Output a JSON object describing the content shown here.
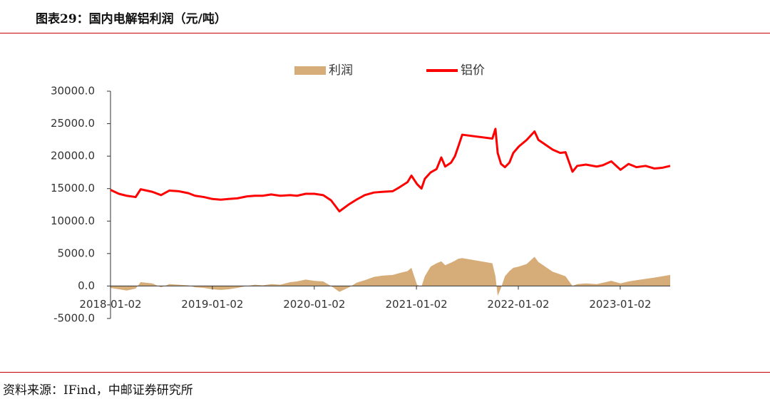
{
  "header": {
    "title": "图表29：国内电解铝利润（元/吨）"
  },
  "footer": {
    "source": "资料来源：IFind，中邮证券研究所"
  },
  "chart_data": {
    "type": "line",
    "x": [
      "2018-01-02",
      "2018-02-01",
      "2018-03-01",
      "2018-04-02",
      "2018-04-20",
      "2018-06-01",
      "2018-07-02",
      "2018-08-01",
      "2018-09-03",
      "2018-10-08",
      "2018-11-01",
      "2018-12-03",
      "2019-01-02",
      "2019-02-01",
      "2019-03-01",
      "2019-04-01",
      "2019-05-06",
      "2019-06-03",
      "2019-07-01",
      "2019-08-01",
      "2019-09-02",
      "2019-10-08",
      "2019-11-01",
      "2019-12-02",
      "2020-01-02",
      "2020-02-03",
      "2020-03-02",
      "2020-04-01",
      "2020-05-06",
      "2020-06-01",
      "2020-07-01",
      "2020-08-03",
      "2020-09-01",
      "2020-10-09",
      "2020-11-02",
      "2020-12-01",
      "2020-12-15",
      "2021-01-04",
      "2021-01-20",
      "2021-02-01",
      "2021-02-22",
      "2021-03-15",
      "2021-04-01",
      "2021-04-15",
      "2021-05-06",
      "2021-05-20",
      "2021-06-01",
      "2021-06-15",
      "2021-10-01",
      "2021-10-12",
      "2021-10-20",
      "2021-11-01",
      "2021-11-15",
      "2021-12-01",
      "2021-12-15",
      "2022-01-04",
      "2022-02-01",
      "2022-03-01",
      "2022-03-15",
      "2022-04-01",
      "2022-05-05",
      "2022-06-01",
      "2022-06-20",
      "2022-07-15",
      "2022-08-01",
      "2022-09-01",
      "2022-10-10",
      "2022-11-01",
      "2022-12-01",
      "2023-01-03",
      "2023-02-01",
      "2023-03-01",
      "2023-04-03",
      "2023-05-04",
      "2023-06-01",
      "2023-06-30"
    ],
    "series": [
      {
        "name": "利润",
        "type": "area",
        "color": "#d6ad79",
        "values": [
          -300,
          -500,
          -700,
          -400,
          600,
          400,
          -200,
          300,
          200,
          100,
          -200,
          -300,
          -500,
          -600,
          -500,
          -300,
          0,
          200,
          100,
          300,
          200,
          600,
          700,
          1000,
          800,
          700,
          0,
          -900,
          -200,
          500,
          900,
          1400,
          1600,
          1700,
          2000,
          2300,
          2800,
          200,
          -100,
          1500,
          3000,
          3500,
          3800,
          3200,
          3600,
          3900,
          4200,
          4300,
          3500,
          1500,
          -1500,
          -300,
          1500,
          2300,
          2800,
          3000,
          3400,
          4500,
          3700,
          3200,
          2200,
          1800,
          1500,
          0,
          300,
          400,
          300,
          500,
          800,
          400,
          700,
          900,
          1100,
          1300,
          1500,
          1700
        ]
      },
      {
        "name": "铝价",
        "type": "line",
        "color": "#ff0000",
        "values": [
          14800,
          14200,
          13900,
          13700,
          14900,
          14500,
          14000,
          14700,
          14600,
          14300,
          13900,
          13700,
          13400,
          13300,
          13400,
          13500,
          13800,
          13900,
          13900,
          14100,
          13900,
          14000,
          13900,
          14200,
          14200,
          14000,
          13200,
          11500,
          12600,
          13300,
          14000,
          14400,
          14500,
          14600,
          15200,
          16000,
          17000,
          15700,
          15000,
          16500,
          17500,
          18000,
          19800,
          18400,
          19000,
          20000,
          21500,
          23300,
          22700,
          24200,
          20500,
          18800,
          18300,
          19000,
          20500,
          21500,
          22500,
          23800,
          22500,
          22000,
          21000,
          20500,
          20600,
          17600,
          18500,
          18700,
          18400,
          18600,
          19200,
          17900,
          18800,
          18300,
          18500,
          18100,
          18200,
          18500
        ]
      }
    ],
    "xlim": [
      "2018-01-02",
      "2023-06-30"
    ],
    "xticks": [
      "2018-01-02",
      "2019-01-02",
      "2020-01-02",
      "2021-01-02",
      "2022-01-02",
      "2023-01-02"
    ],
    "ylim": [
      -5000,
      30000
    ],
    "yticks": [
      {
        "value": -5000,
        "label": "-5000.0"
      },
      {
        "value": 0,
        "label": "0.0"
      },
      {
        "value": 5000,
        "label": "5000.0"
      },
      {
        "value": 10000,
        "label": "10000.0"
      },
      {
        "value": 15000,
        "label": "15000.0"
      },
      {
        "value": 20000,
        "label": "20000.0"
      },
      {
        "value": 25000,
        "label": "25000.0"
      },
      {
        "value": 30000,
        "label": "30000.0"
      }
    ],
    "legend": "top"
  }
}
